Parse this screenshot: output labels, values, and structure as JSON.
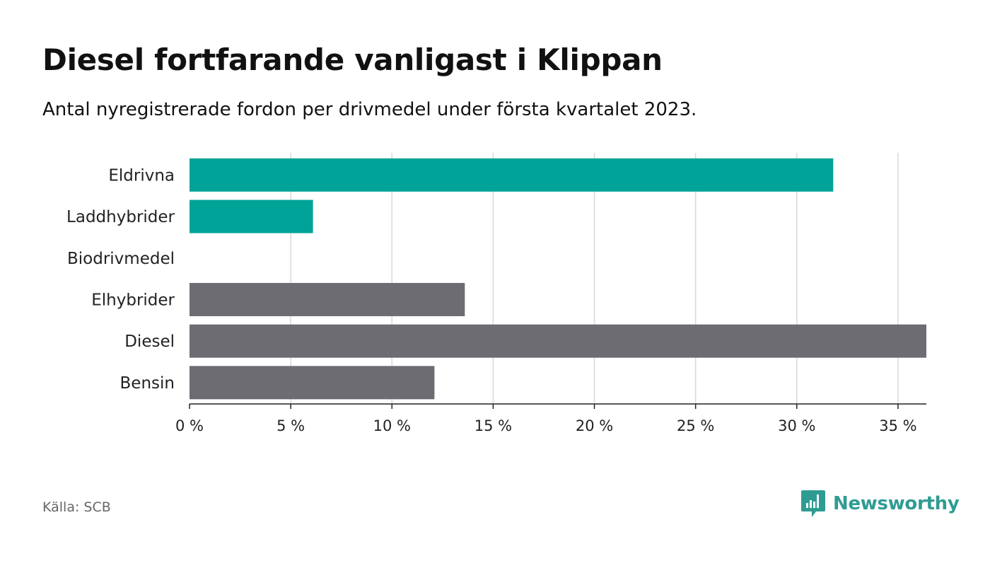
{
  "title": "Diesel fortfarande vanligast i Klippan",
  "subtitle": "Antal nyregistrerade fordon per drivmedel under första kvartalet 2023.",
  "source": "Källa: SCB",
  "brand": {
    "name": "Newsworthy",
    "color": "#2f9c93",
    "icon": "newsworthy-bar-chart-icon"
  },
  "colors": {
    "green": "#00a398",
    "grey": "#6d6c73",
    "grid": "#d9d9d9",
    "axis": "#222222"
  },
  "chart_data": {
    "type": "bar",
    "orientation": "horizontal",
    "categories": [
      "Eldrivna",
      "Laddhybrider",
      "Biodrivmedel",
      "Elhybrider",
      "Diesel",
      "Bensin"
    ],
    "values": [
      31.8,
      6.1,
      0,
      13.6,
      36.4,
      12.1
    ],
    "bar_colors": [
      "green",
      "green",
      "green",
      "grey",
      "grey",
      "grey"
    ],
    "xlim": [
      0,
      36.4
    ],
    "xticks": [
      0,
      5,
      10,
      15,
      20,
      25,
      30,
      35
    ],
    "xtick_labels": [
      "0 %",
      "5 %",
      "10 %",
      "15 %",
      "20 %",
      "25 %",
      "30 %",
      "35 %"
    ],
    "grid": true,
    "xlabel": "",
    "ylabel": ""
  }
}
